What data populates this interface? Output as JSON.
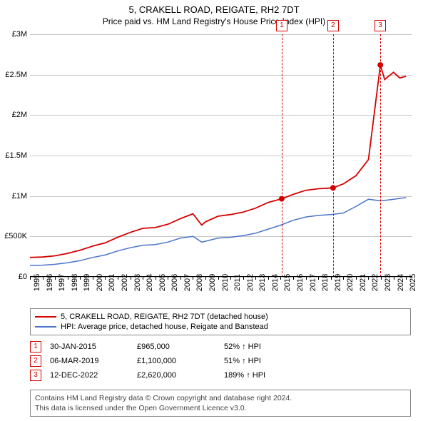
{
  "title": "5, CRAKELL ROAD, REIGATE, RH2 7DT",
  "subtitle": "Price paid vs. HM Land Registry's House Price Index (HPI)",
  "chart": {
    "type": "line",
    "background_color": "#ffffff",
    "grid_color": "#c8c8c8",
    "axis_color": "#000000",
    "xlim": [
      1995,
      2025.5
    ],
    "ylim": [
      0,
      3000000
    ],
    "y_ticks": [
      {
        "v": 0,
        "label": "£0"
      },
      {
        "v": 500000,
        "label": "£500K"
      },
      {
        "v": 1000000,
        "label": "£1M"
      },
      {
        "v": 1500000,
        "label": "£1.5M"
      },
      {
        "v": 2000000,
        "label": "£2M"
      },
      {
        "v": 2500000,
        "label": "£2.5M"
      },
      {
        "v": 3000000,
        "label": "£3M"
      }
    ],
    "x_ticks": [
      1995,
      1996,
      1997,
      1998,
      1999,
      2000,
      2001,
      2002,
      2003,
      2004,
      2005,
      2006,
      2007,
      2008,
      2009,
      2010,
      2011,
      2012,
      2013,
      2014,
      2015,
      2016,
      2017,
      2018,
      2019,
      2020,
      2021,
      2022,
      2023,
      2024,
      2025
    ],
    "series": [
      {
        "name": "property",
        "label": "5, CRAKELL ROAD, REIGATE, RH2 7DT (detached house)",
        "color": "#d40000",
        "line_width": 1.8,
        "points": [
          [
            1995,
            240000
          ],
          [
            1996,
            245000
          ],
          [
            1997,
            260000
          ],
          [
            1998,
            290000
          ],
          [
            1999,
            330000
          ],
          [
            2000,
            380000
          ],
          [
            2001,
            420000
          ],
          [
            2002,
            490000
          ],
          [
            2003,
            550000
          ],
          [
            2004,
            600000
          ],
          [
            2005,
            610000
          ],
          [
            2006,
            650000
          ],
          [
            2007,
            720000
          ],
          [
            2008,
            780000
          ],
          [
            2008.7,
            640000
          ],
          [
            2009,
            680000
          ],
          [
            2010,
            750000
          ],
          [
            2011,
            770000
          ],
          [
            2012,
            800000
          ],
          [
            2013,
            850000
          ],
          [
            2014,
            920000
          ],
          [
            2015.08,
            965000
          ],
          [
            2016,
            1020000
          ],
          [
            2017,
            1070000
          ],
          [
            2018,
            1090000
          ],
          [
            2019.18,
            1100000
          ],
          [
            2020,
            1150000
          ],
          [
            2021,
            1250000
          ],
          [
            2022,
            1450000
          ],
          [
            2022.95,
            2620000
          ],
          [
            2023.3,
            2440000
          ],
          [
            2024,
            2530000
          ],
          [
            2024.5,
            2460000
          ],
          [
            2025,
            2480000
          ]
        ]
      },
      {
        "name": "hpi",
        "label": "HPI: Average price, detached house, Reigate and Banstead",
        "color": "#4a74c9",
        "line_width": 1.5,
        "points": [
          [
            1995,
            140000
          ],
          [
            1996,
            145000
          ],
          [
            1997,
            155000
          ],
          [
            1998,
            175000
          ],
          [
            1999,
            200000
          ],
          [
            2000,
            240000
          ],
          [
            2001,
            270000
          ],
          [
            2002,
            320000
          ],
          [
            2003,
            360000
          ],
          [
            2004,
            390000
          ],
          [
            2005,
            400000
          ],
          [
            2006,
            430000
          ],
          [
            2007,
            480000
          ],
          [
            2008,
            500000
          ],
          [
            2008.7,
            430000
          ],
          [
            2009,
            440000
          ],
          [
            2010,
            480000
          ],
          [
            2011,
            490000
          ],
          [
            2012,
            510000
          ],
          [
            2013,
            540000
          ],
          [
            2014,
            590000
          ],
          [
            2015,
            640000
          ],
          [
            2016,
            700000
          ],
          [
            2017,
            740000
          ],
          [
            2018,
            760000
          ],
          [
            2019,
            770000
          ],
          [
            2020,
            790000
          ],
          [
            2021,
            870000
          ],
          [
            2022,
            960000
          ],
          [
            2023,
            940000
          ],
          [
            2024,
            960000
          ],
          [
            2025,
            980000
          ]
        ]
      }
    ],
    "sale_markers": [
      {
        "idx": "1",
        "x": 2015.08,
        "y": 965000,
        "color": "#d40000"
      },
      {
        "idx": "2",
        "x": 2019.18,
        "y": 1100000,
        "color": "#d40000"
      },
      {
        "idx": "3",
        "x": 2022.95,
        "y": 2620000,
        "color": "#d40000"
      }
    ]
  },
  "sales": [
    {
      "idx": "1",
      "date": "30-JAN-2015",
      "price": "£965,000",
      "vs": "52% ↑ HPI"
    },
    {
      "idx": "2",
      "date": "06-MAR-2019",
      "price": "£1,100,000",
      "vs": "51% ↑ HPI"
    },
    {
      "idx": "3",
      "date": "12-DEC-2022",
      "price": "£2,620,000",
      "vs": "189% ↑ HPI"
    }
  ],
  "footer": {
    "line1": "Contains HM Land Registry data © Crown copyright and database right 2024.",
    "line2": "This data is licensed under the Open Government Licence v3.0."
  },
  "colors": {
    "badge_border": "#d40000",
    "footer_text": "#444444",
    "legend_border": "#888888"
  },
  "fonts": {
    "title_size": 13,
    "subtitle_size": 12,
    "axis_label_size": 11,
    "legend_size": 11,
    "footer_size": 10.5
  }
}
